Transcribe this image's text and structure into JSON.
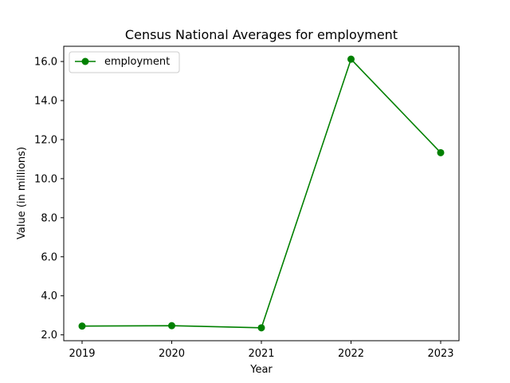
{
  "chart_data": {
    "type": "line",
    "title": "Census National Averages for employment",
    "xlabel": "Year",
    "ylabel": "Value (in millions)",
    "categories": [
      "2019",
      "2020",
      "2021",
      "2022",
      "2023"
    ],
    "series": [
      {
        "name": "employment",
        "values": [
          2.45,
          2.47,
          2.36,
          16.12,
          11.33
        ],
        "color": "#008000"
      }
    ],
    "ylim": [
      1.7,
      16.78
    ],
    "yticks": [
      2.0,
      4.0,
      6.0,
      8.0,
      10.0,
      12.0,
      14.0,
      16.0
    ],
    "ytick_labels": [
      "2.0",
      "4.0",
      "6.0",
      "8.0",
      "10.0",
      "12.0",
      "14.0",
      "16.0"
    ],
    "grid": false,
    "legend_position": "top-left"
  }
}
